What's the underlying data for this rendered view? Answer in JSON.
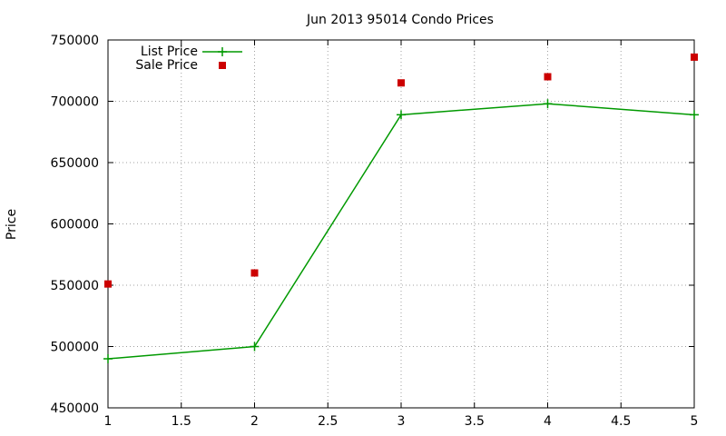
{
  "chart_data": {
    "type": "line",
    "title": "Jun 2013 95014 Condo Prices",
    "xlabel": "",
    "ylabel": "Price",
    "xlim": [
      1,
      5
    ],
    "ylim": [
      450000,
      750000
    ],
    "xticks": [
      "1",
      "1.5",
      "2",
      "2.5",
      "3",
      "3.5",
      "4",
      "4.5",
      "5"
    ],
    "xtick_values": [
      1,
      1.5,
      2,
      2.5,
      3,
      3.5,
      4,
      4.5,
      5
    ],
    "yticks": [
      "450000",
      "500000",
      "550000",
      "600000",
      "650000",
      "700000",
      "750000"
    ],
    "ytick_values": [
      450000,
      500000,
      550000,
      600000,
      650000,
      700000,
      750000
    ],
    "grid": true,
    "legend_position": "top-left",
    "series": [
      {
        "name": "List Price",
        "style": "line+cross",
        "color": "#009900",
        "x": [
          1,
          2,
          3,
          4,
          5
        ],
        "values": [
          490000,
          500000,
          689000,
          698000,
          689000
        ]
      },
      {
        "name": "Sale Price",
        "style": "square-points",
        "color": "#cc0000",
        "x": [
          1,
          2,
          3,
          4,
          5
        ],
        "values": [
          551000,
          560000,
          715000,
          720000,
          736000
        ]
      }
    ]
  }
}
